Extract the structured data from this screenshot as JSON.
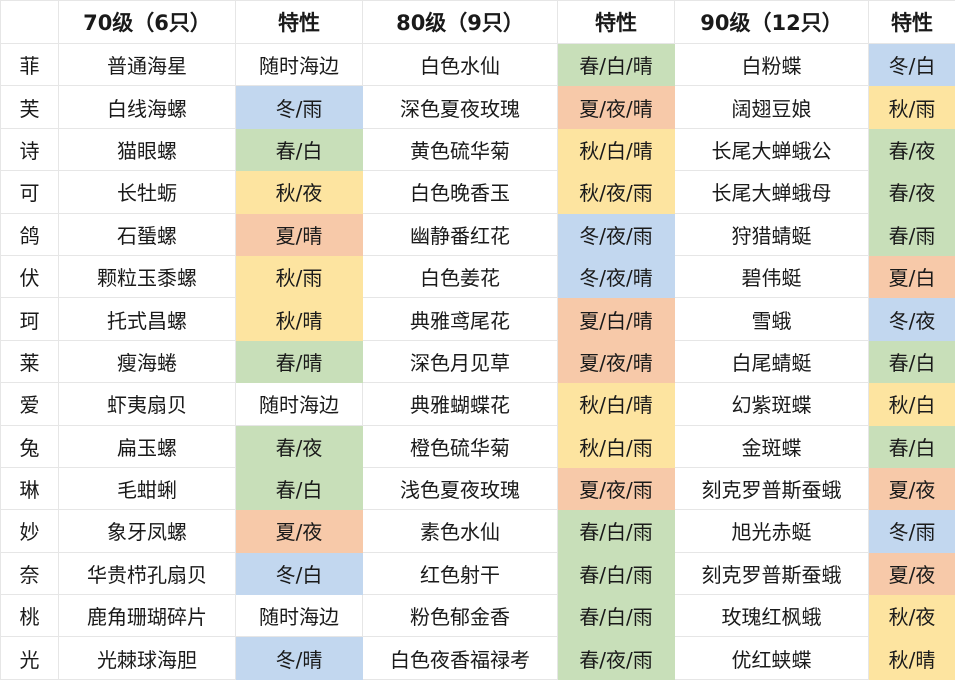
{
  "colors": {
    "春": "#c8dfb9",
    "夏": "#f7c9a9",
    "秋": "#fde4a0",
    "冬": "#c2d7ef",
    "default": "#ffffff"
  },
  "header": [
    "",
    "70级（6只）",
    "特性",
    "80级（9只）",
    "特性",
    "90级（12只）",
    "特性"
  ],
  "rows": [
    [
      "菲",
      "普通海星",
      "随时海边",
      "白色水仙",
      "春/白/晴",
      "白粉蝶",
      "冬/白"
    ],
    [
      "芙",
      "白线海螺",
      "冬/雨",
      "深色夏夜玫瑰",
      "夏/夜/晴",
      "阔翅豆娘",
      "秋/雨"
    ],
    [
      "诗",
      "猫眼螺",
      "春/白",
      "黄色硫华菊",
      "秋/白/晴",
      "长尾大蝉蛾公",
      "春/夜"
    ],
    [
      "可",
      "长牡蛎",
      "秋/夜",
      "白色晚香玉",
      "秋/夜/雨",
      "长尾大蝉蛾母",
      "春/夜"
    ],
    [
      "鸽",
      "石蜑螺",
      "夏/晴",
      "幽静番红花",
      "冬/夜/雨",
      "狩猎蜻蜓",
      "春/雨"
    ],
    [
      "伏",
      "颗粒玉黍螺",
      "秋/雨",
      "白色姜花",
      "冬/夜/晴",
      "碧伟蜓",
      "夏/白"
    ],
    [
      "珂",
      "托式昌螺",
      "秋/晴",
      "典雅鸢尾花",
      "夏/白/晴",
      "雪蛾",
      "冬/夜"
    ],
    [
      "莱",
      "瘦海蜷",
      "春/晴",
      "深色月见草",
      "夏/夜/晴",
      "白尾蜻蜓",
      "春/白"
    ],
    [
      "爱",
      "虾夷扇贝",
      "随时海边",
      "典雅蝴蝶花",
      "秋/白/晴",
      "幻紫斑蝶",
      "秋/白"
    ],
    [
      "兔",
      "扁玉螺",
      "春/夜",
      "橙色硫华菊",
      "秋/白/雨",
      "金斑蝶",
      "春/白"
    ],
    [
      "琳",
      "毛蚶蜊",
      "春/白",
      "浅色夏夜玫瑰",
      "夏/夜/雨",
      "刻克罗普斯蚕蛾",
      "夏/夜"
    ],
    [
      "妙",
      "象牙凤螺",
      "夏/夜",
      "素色水仙",
      "春/白/雨",
      "旭光赤蜓",
      "冬/雨"
    ],
    [
      "奈",
      "华贵栉孔扇贝",
      "冬/白",
      "红色射干",
      "春/白/雨",
      "刻克罗普斯蚕蛾",
      "夏/夜"
    ],
    [
      "桃",
      "鹿角珊瑚碎片",
      "随时海边",
      "粉色郁金香",
      "春/白/雨",
      "玫瑰红枫蛾",
      "秋/夜"
    ],
    [
      "光",
      "光棘球海胆",
      "冬/晴",
      "白色夜香福禄考",
      "春/夜/雨",
      "优红蛱蝶",
      "秋/晴"
    ]
  ]
}
